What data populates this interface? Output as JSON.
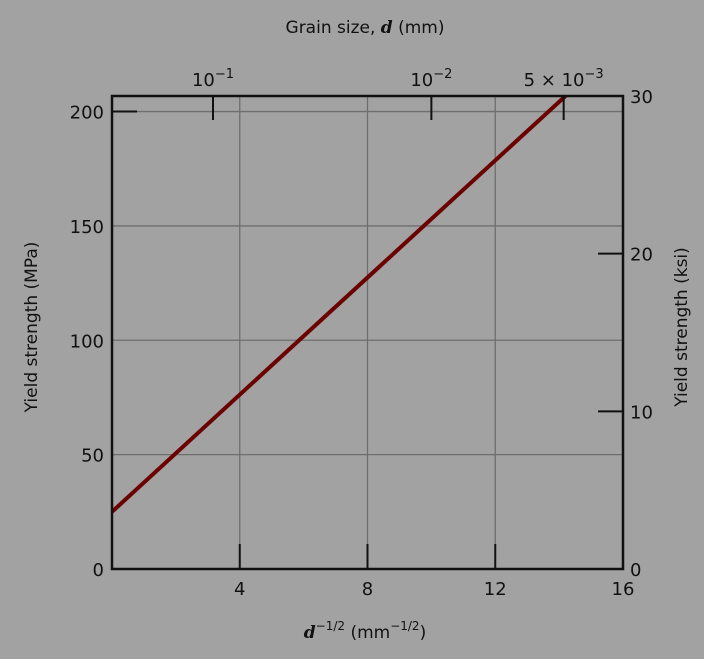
{
  "chart_data": {
    "type": "line",
    "title": "",
    "xlabel": "d^-1/2 (mm^-1/2)",
    "xlabel_parts": {
      "var": "d",
      "exp": "−1/2",
      "unit": " (mm",
      "unit_exp": "−1/2",
      "close": ")"
    },
    "ylabel": "Yield strength (MPa)",
    "y2label": "Yield strength (ksi)",
    "top_label": {
      "text": "Grain size, ",
      "var": "d",
      "unit": " (mm)"
    },
    "xlim": [
      0,
      16
    ],
    "ylim": [
      0,
      206.8
    ],
    "y2lim": [
      0,
      30
    ],
    "xticks": [
      4,
      8,
      12,
      16
    ],
    "yticks": [
      0,
      50,
      100,
      150,
      200
    ],
    "y2ticks": [
      0,
      10,
      20,
      30
    ],
    "top_ticks": [
      {
        "grain_size_mm": 0.1,
        "base": "10",
        "exp": "−1",
        "prefix": ""
      },
      {
        "grain_size_mm": 0.01,
        "base": "10",
        "exp": "−2",
        "prefix": ""
      },
      {
        "grain_size_mm": 0.005,
        "base": "10",
        "exp": "−3",
        "prefix": "5 × "
      }
    ],
    "grid": true,
    "series": [
      {
        "x": [
          0,
          14.2
        ],
        "y": [
          25,
          206.8
        ],
        "color": "#6b0000"
      }
    ]
  }
}
